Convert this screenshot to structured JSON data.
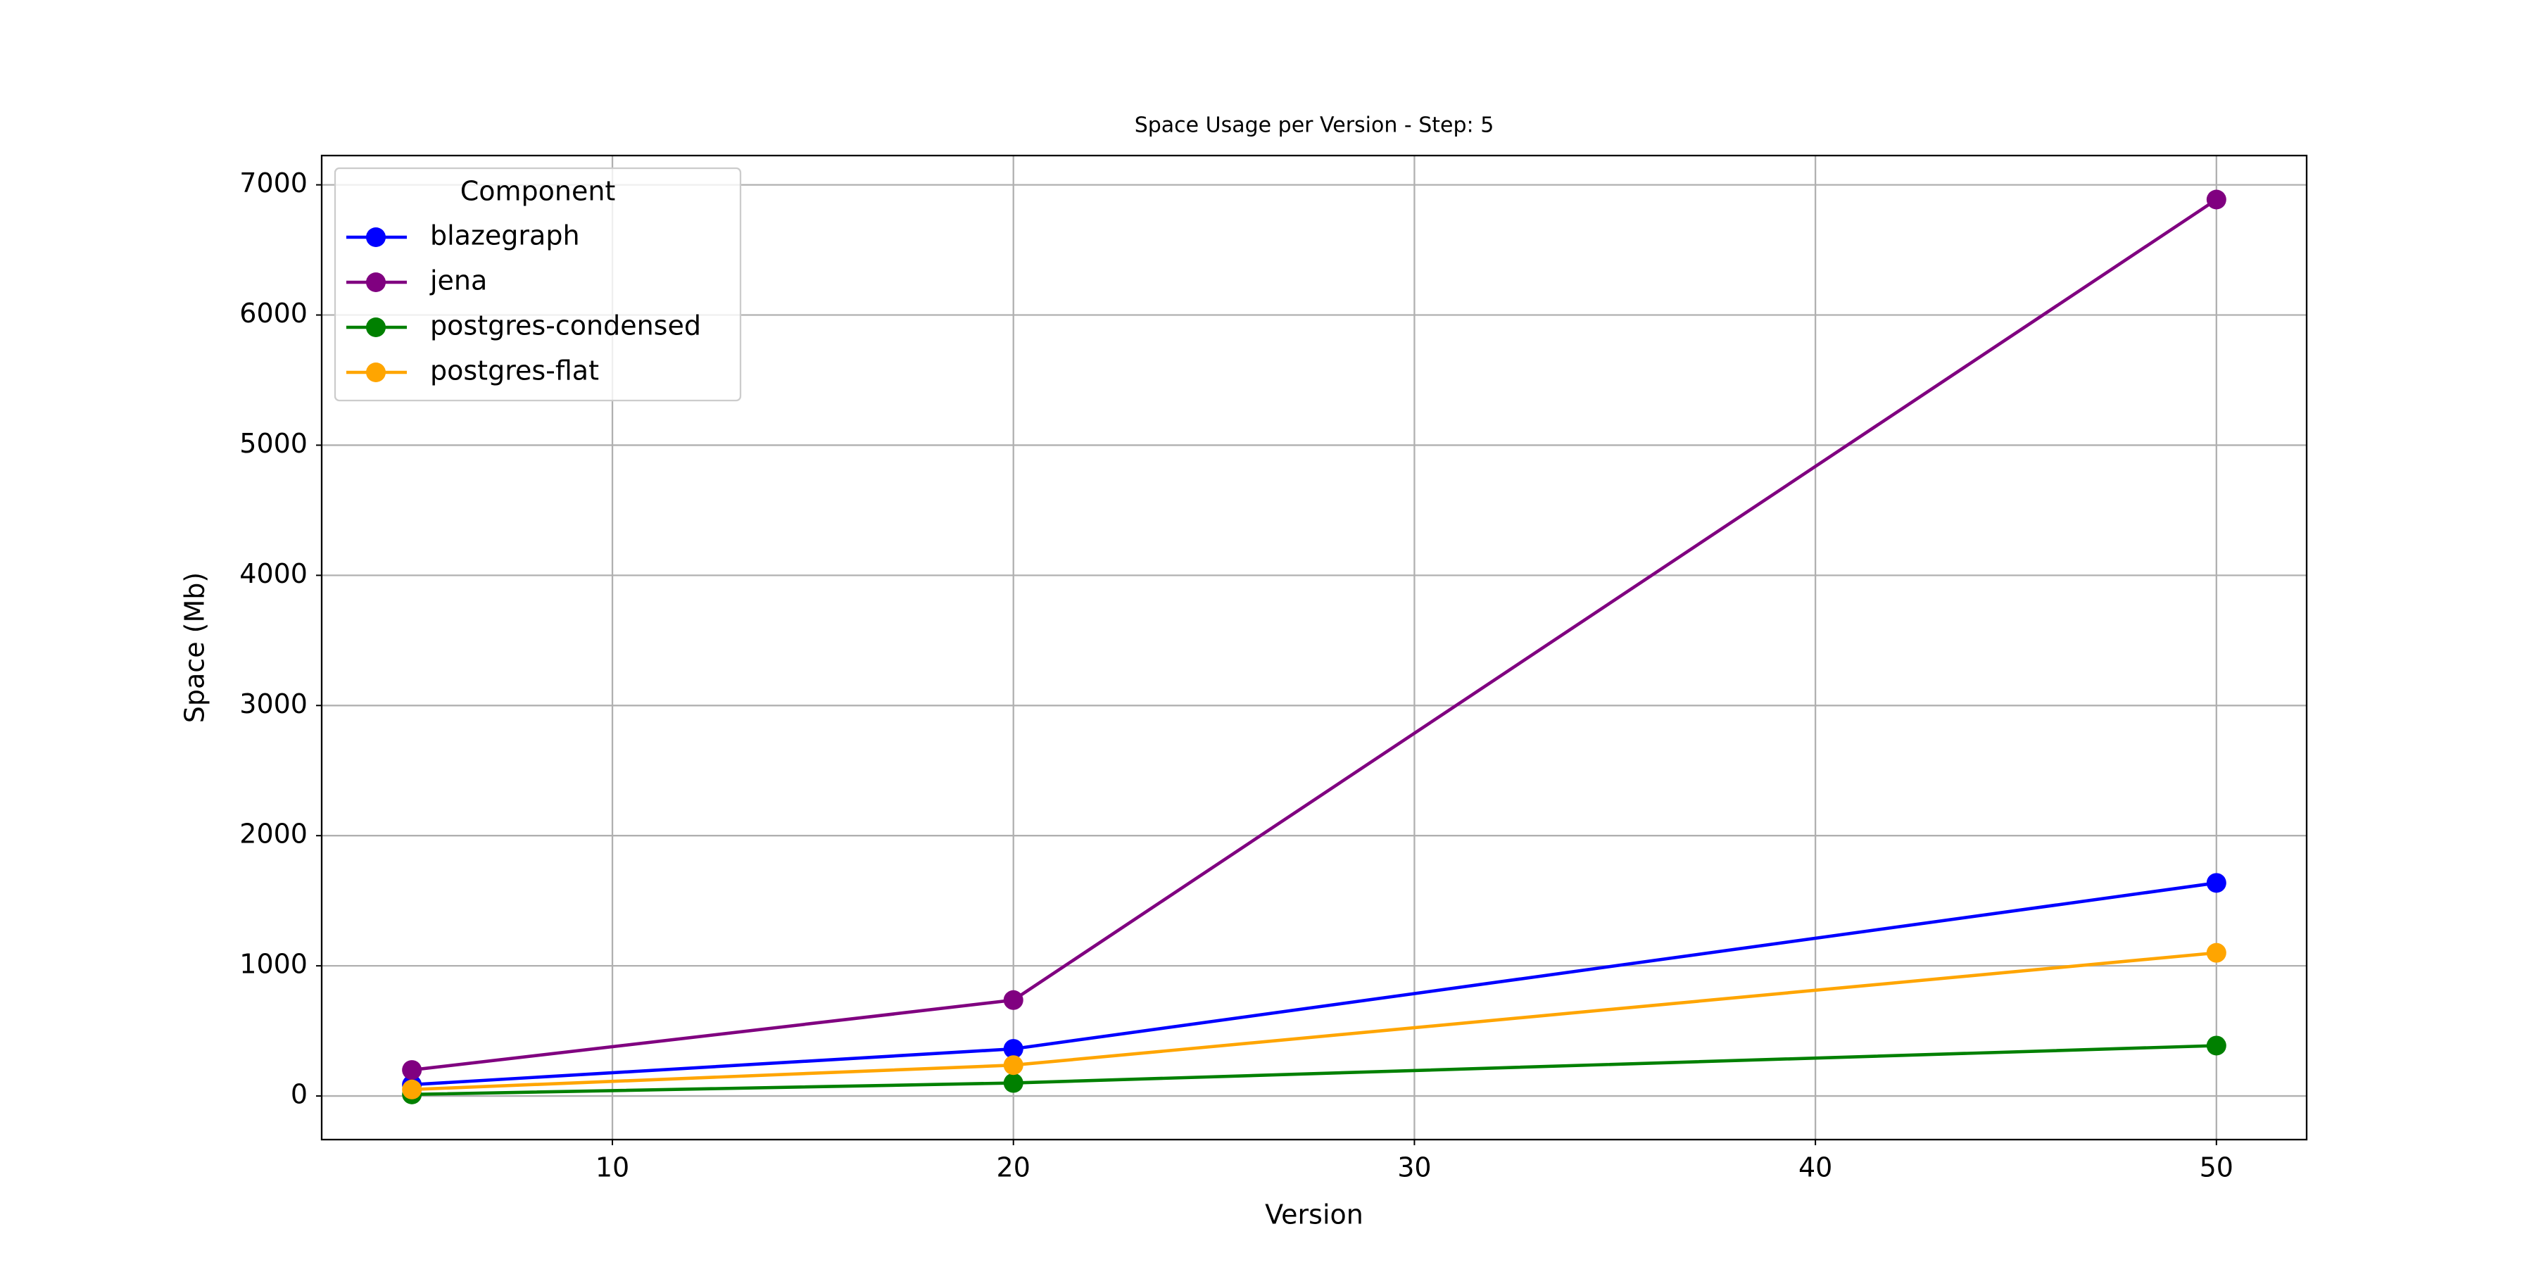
{
  "chart_data": {
    "type": "line",
    "title": "Space Usage per Version - Step: 5",
    "xlabel": "Version",
    "ylabel": "Space (Mb)",
    "legend_title": "Component",
    "legend": "upper left",
    "grid": true,
    "x": [
      5,
      20,
      50
    ],
    "series": [
      {
        "name": "blazegraph",
        "color": "#0000ff",
        "values": [
          87,
          362,
          1637
        ]
      },
      {
        "name": "jena",
        "color": "#800080",
        "values": [
          200,
          737,
          6887
        ]
      },
      {
        "name": "postgres-condensed",
        "color": "#008000",
        "values": [
          12,
          100,
          387
        ]
      },
      {
        "name": "postgres-flat",
        "color": "#ffa500",
        "values": [
          50,
          237,
          1100
        ]
      }
    ],
    "xlim": [
      2.75,
      52.25
    ],
    "xticks": [
      10,
      20,
      30,
      40,
      50
    ],
    "ylim": [
      -335,
      7225
    ],
    "yticks": [
      0,
      1000,
      2000,
      3000,
      4000,
      5000,
      6000,
      7000
    ]
  }
}
